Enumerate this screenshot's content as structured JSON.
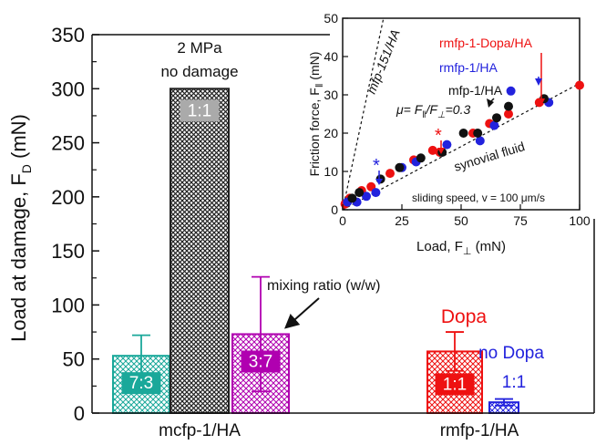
{
  "chart_data": [
    {
      "type": "bar",
      "ylabel": "Load at damage, F",
      "ylabel_sub": "D",
      "ylabel_unit": " (mN)",
      "ylim": [
        0,
        350
      ],
      "yticks": [
        0,
        50,
        100,
        150,
        200,
        250,
        300,
        350
      ],
      "groups": [
        "mcfp-1/HA",
        "rmfp-1/HA"
      ],
      "bars": [
        {
          "group": "mcfp-1/HA",
          "label": "7:3",
          "value": 53,
          "error": 19,
          "color": "#1aa89a"
        },
        {
          "group": "mcfp-1/HA",
          "label": "1:1",
          "value": 300,
          "error": 0,
          "color": "#222222"
        },
        {
          "group": "mcfp-1/HA",
          "label": "3:7",
          "value": 73,
          "error": 53,
          "color": "#b000b0"
        },
        {
          "group": "rmfp-1/HA",
          "label": "1:1",
          "value": 57,
          "error": 18,
          "color": "#ee1111"
        },
        {
          "group": "rmfp-1/HA",
          "label": "",
          "value": 10,
          "error": 3,
          "color": "#2222dd"
        }
      ],
      "annotations": {
        "pressure": "2 MPa",
        "no_damage": "no damage",
        "mixing": "mixing ratio (w/w)",
        "dopa": "Dopa",
        "no_dopa": "no Dopa",
        "no_dopa_ratio": "1:1"
      }
    },
    {
      "type": "scatter",
      "xlabel": "Load, F",
      "xlabel_sub": "⊥",
      "xlabel_unit": " (mN)",
      "ylabel": "Friction force, F",
      "ylabel_sub": "‖",
      "ylabel_unit": " (mN)",
      "xlim": [
        0,
        100
      ],
      "ylim": [
        0,
        50
      ],
      "xticks": [
        0,
        25,
        50,
        75,
        100
      ],
      "yticks": [
        0,
        10,
        20,
        30,
        40,
        50
      ],
      "series": [
        {
          "name": "rmfp-1-Dopa/HA",
          "color": "#ee1111",
          "x": [
            1,
            3,
            8,
            12,
            20,
            30,
            38,
            41,
            55,
            62,
            70,
            83,
            100
          ],
          "y": [
            1.5,
            3,
            5,
            6,
            9.5,
            13,
            15.5,
            15,
            20,
            22.5,
            25,
            28,
            32.5
          ]
        },
        {
          "name": "rmfp-1/HA",
          "color": "#2222dd",
          "x": [
            2,
            6,
            10,
            14,
            25,
            31,
            44,
            58,
            64,
            71,
            87
          ],
          "y": [
            2,
            2,
            3.5,
            4.5,
            11,
            12.5,
            17,
            18,
            22,
            31,
            28
          ]
        },
        {
          "name": "mfp-1/HA",
          "color": "#111111",
          "x": [
            4,
            7,
            16,
            24,
            33,
            42,
            51,
            57,
            65,
            70,
            85
          ],
          "y": [
            3,
            4.5,
            8,
            11,
            13.5,
            15,
            20,
            20,
            24,
            27,
            29
          ]
        }
      ],
      "lines": [
        {
          "label": "mfp-151/HA",
          "slope": 2.9
        },
        {
          "label": "synovial fluid",
          "slope": 0.33
        }
      ],
      "mu_label": "μ= F",
      "mu_sub1": "‖",
      "mu_mid": "/F",
      "mu_sub2": "⊥",
      "mu_end": "=0.3",
      "footnote": "sliding speed, v = 100 μm/s"
    }
  ]
}
